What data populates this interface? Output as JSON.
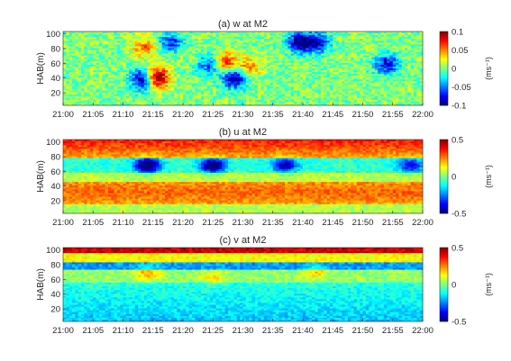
{
  "chart_data": [
    {
      "type": "heatmap",
      "title": "(a) w at M2",
      "ylabel": "HAB(m)",
      "x_ticks": [
        "21:00",
        "21:05",
        "21:10",
        "21:15",
        "21:20",
        "21:25",
        "21:30",
        "21:35",
        "21:40",
        "21:45",
        "21:50",
        "21:55",
        "22:00"
      ],
      "x_range": [
        "21:00",
        "22:00"
      ],
      "y_ticks": [
        20,
        40,
        60,
        80,
        100
      ],
      "y_range": [
        3,
        103
      ],
      "colorbar": {
        "ticks": [
          0.1,
          0.05,
          0,
          -0.05,
          -0.1
        ],
        "range": [
          -0.1,
          0.1
        ],
        "label": "(ms⁻¹)"
      },
      "colormap": "jet",
      "features": [
        {
          "t_min": 13.5,
          "hab": 38,
          "value": -0.09
        },
        {
          "t_min": 15.5,
          "hab": 40,
          "value": 0.1
        },
        {
          "t_min": 24.5,
          "hab": 58,
          "value": -0.05
        },
        {
          "t_min": 28.5,
          "hab": 40,
          "value": -0.08
        },
        {
          "t_min": 27.0,
          "hab": 60,
          "value": 0.06
        },
        {
          "t_min": 31.0,
          "hab": 55,
          "value": 0.04
        },
        {
          "t_min": 39.5,
          "hab": 88,
          "value": -0.08
        },
        {
          "t_min": 42.5,
          "hab": 88,
          "value": -0.06
        },
        {
          "t_min": 54.0,
          "hab": 58,
          "value": -0.06
        },
        {
          "t_min": 18.0,
          "hab": 88,
          "value": -0.05
        },
        {
          "t_min": 13.5,
          "hab": 82,
          "value": 0.04
        }
      ]
    },
    {
      "type": "heatmap",
      "title": "(b) u at M2",
      "ylabel": "HAB(m)",
      "x_ticks": [
        "21:00",
        "21:05",
        "21:10",
        "21:15",
        "21:20",
        "21:25",
        "21:30",
        "21:35",
        "21:40",
        "21:45",
        "21:50",
        "21:55",
        "22:00"
      ],
      "x_range": [
        "21:00",
        "22:00"
      ],
      "y_ticks": [
        20,
        40,
        60,
        80,
        100
      ],
      "y_range": [
        3,
        103
      ],
      "colorbar": {
        "ticks": [
          0.5,
          0,
          -0.5
        ],
        "range": [
          -0.5,
          0.5
        ],
        "label": "(ms⁻¹)"
      },
      "colormap": "jet",
      "features": [
        {
          "t_min": 14.0,
          "hab": 68,
          "value": -0.45
        },
        {
          "t_min": 25.0,
          "hab": 68,
          "value": -0.4
        },
        {
          "t_min": 37.0,
          "hab": 68,
          "value": -0.3
        },
        {
          "t_min": 58.0,
          "hab": 68,
          "value": -0.25
        }
      ]
    },
    {
      "type": "heatmap",
      "title": "(c) v at M2",
      "ylabel": "HAB(m)",
      "x_ticks": [
        "21:00",
        "21:05",
        "21:10",
        "21:15",
        "21:20",
        "21:25",
        "21:30",
        "21:35",
        "21:40",
        "21:45",
        "21:50",
        "21:55",
        "22:00"
      ],
      "x_range": [
        "21:00",
        "22:00"
      ],
      "y_ticks": [
        20,
        40,
        60,
        80,
        100
      ],
      "y_range": [
        3,
        103
      ],
      "colorbar": {
        "ticks": [
          0.5,
          0,
          -0.5
        ],
        "range": [
          -0.5,
          0.5
        ],
        "label": "(ms⁻¹)"
      },
      "colormap": "jet",
      "features": [
        {
          "t_min": 14.0,
          "hab": 68,
          "value": 0.15
        },
        {
          "t_min": 25.0,
          "hab": 62,
          "value": 0.1
        },
        {
          "t_min": 42.0,
          "hab": 70,
          "value": 0.12
        }
      ]
    }
  ]
}
